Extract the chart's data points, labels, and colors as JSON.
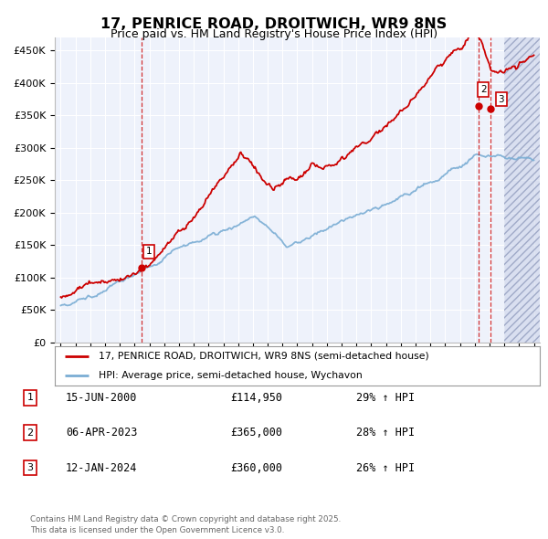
{
  "title": "17, PENRICE ROAD, DROITWICH, WR9 8NS",
  "subtitle": "Price paid vs. HM Land Registry's House Price Index (HPI)",
  "ylim": [
    0,
    470000
  ],
  "yticks": [
    0,
    50000,
    100000,
    150000,
    200000,
    250000,
    300000,
    350000,
    400000,
    450000
  ],
  "xlim_year": [
    1994.6,
    2027.4
  ],
  "red_line_color": "#cc0000",
  "blue_line_color": "#7aadd4",
  "transaction_markers": [
    {
      "label": "1",
      "year": 2000.45,
      "value": 114950
    },
    {
      "label": "2",
      "year": 2023.27,
      "value": 365000
    },
    {
      "label": "3",
      "year": 2024.04,
      "value": 360000
    }
  ],
  "legend_line1": "17, PENRICE ROAD, DROITWICH, WR9 8NS (semi-detached house)",
  "legend_line2": "HPI: Average price, semi-detached house, Wychavon",
  "table_rows": [
    {
      "num": "1",
      "date": "15-JUN-2000",
      "price": "£114,950",
      "pct": "29% ↑ HPI"
    },
    {
      "num": "2",
      "date": "06-APR-2023",
      "price": "£365,000",
      "pct": "28% ↑ HPI"
    },
    {
      "num": "3",
      "date": "12-JAN-2024",
      "price": "£360,000",
      "pct": "26% ↑ HPI"
    }
  ],
  "footer": "Contains HM Land Registry data © Crown copyright and database right 2025.\nThis data is licensed under the Open Government Licence v3.0.",
  "background_color": "#eef2fb",
  "hatch_region_start": 2025.0,
  "hatch_region_end": 2027.4
}
